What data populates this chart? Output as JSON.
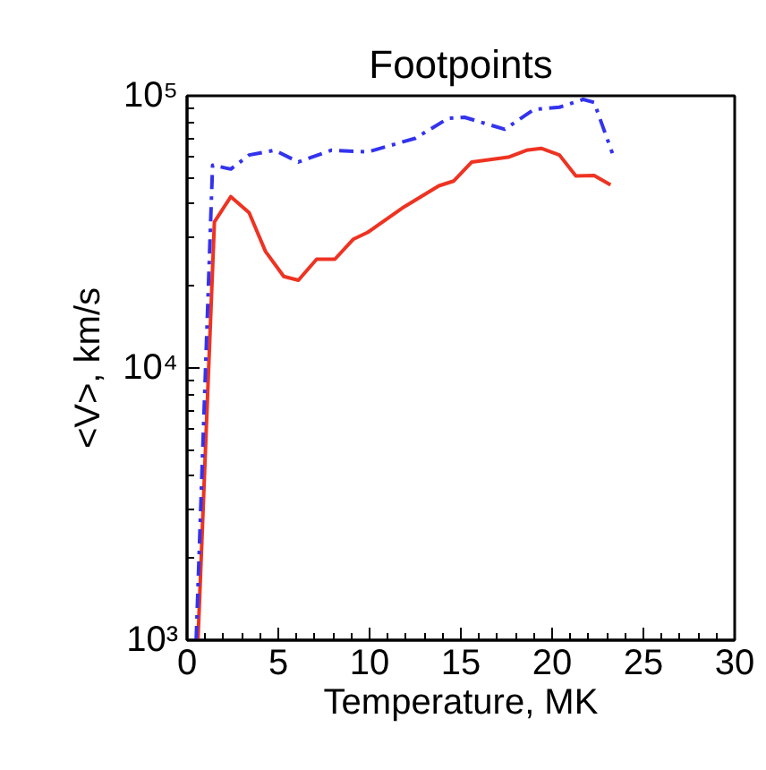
{
  "chart_data": {
    "type": "line",
    "title": "Footpoints",
    "xlabel": "Temperature, MK",
    "ylabel": "<V>, km/s",
    "log": "y",
    "xlim": [
      0,
      30
    ],
    "xticks": [
      0,
      5,
      10,
      15,
      20,
      25,
      30
    ],
    "ylim": [
      1000,
      100000
    ],
    "yticks": [
      {
        "value": 1000,
        "label": "10³"
      },
      {
        "value": 10000,
        "label": "10⁴"
      },
      {
        "value": 100000,
        "label": "10⁵"
      }
    ],
    "grid": false,
    "series": [
      {
        "color": "#ee3322",
        "line_style": "solid",
        "x": [
          0.6,
          1.5,
          2.4,
          3.4,
          4.3,
          5.3,
          6.1,
          7.1,
          8.1,
          9.1,
          9.9,
          11.9,
          13.8,
          14.6,
          15.6,
          17.6,
          18.6,
          19.4,
          20.4,
          21.3,
          22.3,
          23.2
        ],
        "values": [
          1000,
          34400,
          42600,
          37200,
          26800,
          21700,
          21000,
          25100,
          25100,
          29700,
          31500,
          39100,
          46700,
          48600,
          57100,
          59500,
          63100,
          64100,
          60600,
          50800,
          51000,
          47100
        ]
      },
      {
        "color": "#3333ee",
        "line_style": "dashdot",
        "x": [
          0.5,
          1.4,
          2.4,
          3.4,
          4.8,
          6.1,
          7.9,
          9.9,
          12.5,
          14.3,
          15.2,
          17.4,
          19.0,
          20.4,
          21.7,
          22.3,
          23.3
        ],
        "values": [
          1000,
          55600,
          53800,
          60600,
          63100,
          57100,
          63100,
          62200,
          69800,
          82600,
          83400,
          75300,
          89100,
          90800,
          97000,
          94600,
          61500
        ]
      }
    ]
  }
}
